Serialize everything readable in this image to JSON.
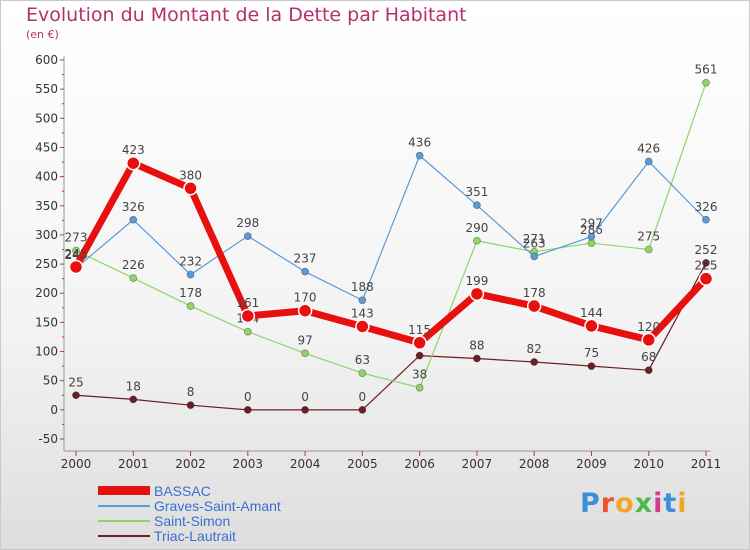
{
  "header": {
    "title": "Evolution du Montant de la Dette par Habitant",
    "subtitle": "(en €)"
  },
  "logo": {
    "text": "Proxiti",
    "colors": [
      "#3a8fd8",
      "#e8572a",
      "#f2a623",
      "#4fb84a",
      "#d83a8f",
      "#3a8fd8",
      "#f2a623"
    ]
  },
  "chart_data": {
    "type": "line",
    "x": [
      "2000",
      "2001",
      "2002",
      "2003",
      "2004",
      "2005",
      "2006",
      "2007",
      "2008",
      "2009",
      "2010",
      "2011"
    ],
    "ylim": [
      -50,
      600
    ],
    "yticks": [
      "-50",
      "0",
      "50",
      "100",
      "150",
      "200",
      "250",
      "300",
      "350",
      "400",
      "450",
      "500",
      "550",
      "600"
    ],
    "grid": false,
    "legend_position": "bottom-left",
    "series": [
      {
        "name": "Triac-Lautrait",
        "color": "#6b1f24",
        "width": 1.2,
        "values": [
          25,
          18,
          8,
          0,
          0,
          0,
          93,
          88,
          82,
          75,
          68,
          252
        ],
        "labels": [
          "25",
          "18",
          "8",
          "0",
          "0",
          "0",
          "93",
          "88",
          "82",
          "75",
          "68",
          "252"
        ]
      },
      {
        "name": "Saint-Simon",
        "color": "#8fd66a",
        "width": 1.2,
        "values": [
          273,
          226,
          178,
          134,
          97,
          63,
          38,
          290,
          271,
          286,
          275,
          561
        ],
        "labels": [
          "273",
          "226",
          "178",
          "134",
          "97",
          "63",
          "38",
          "290",
          "271",
          "286",
          "275",
          "561"
        ]
      },
      {
        "name": "Graves-Saint-Amant",
        "color": "#5b9bd5",
        "width": 1.2,
        "values": [
          243,
          326,
          232,
          298,
          237,
          188,
          436,
          351,
          263,
          297,
          426,
          326
        ],
        "labels": [
          "243",
          "326",
          "232",
          "298",
          "237",
          "188",
          "436",
          "351",
          "263",
          "297",
          "426",
          "326"
        ]
      },
      {
        "name": "BASSAC",
        "color": "#e8100f",
        "width": 7,
        "values": [
          245,
          423,
          380,
          161,
          170,
          143,
          115,
          199,
          178,
          144,
          120,
          225
        ],
        "labels": [
          "245",
          "423",
          "380",
          "161",
          "170",
          "143",
          "115",
          "199",
          "178",
          "144",
          "120",
          "225"
        ]
      }
    ],
    "legend_order": [
      "BASSAC",
      "Graves-Saint-Amant",
      "Saint-Simon",
      "Triac-Lautrait"
    ]
  }
}
